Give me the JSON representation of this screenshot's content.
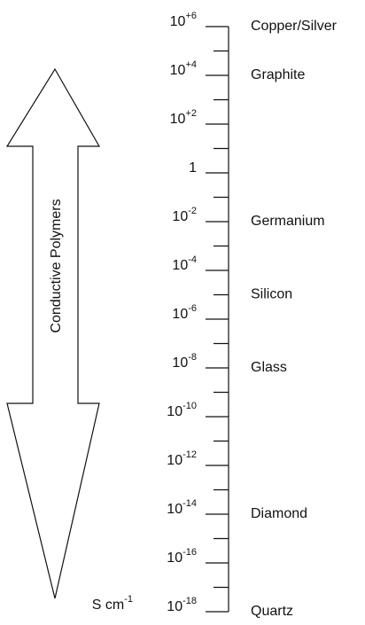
{
  "unit": {
    "base": "S cm",
    "exp": "-1"
  },
  "arrow_label": "Conductive Polymers",
  "scale": {
    "ticks": [
      {
        "value": 6,
        "base": "10",
        "exp": "+6"
      },
      {
        "value": 4,
        "base": "10",
        "exp": "+4"
      },
      {
        "value": 2,
        "base": "10",
        "exp": "+2"
      },
      {
        "value": 0,
        "base": "1"
      },
      {
        "value": -2,
        "base": "10",
        "exp": "-2"
      },
      {
        "value": -4,
        "base": "10",
        "exp": "-4"
      },
      {
        "value": -6,
        "base": "10",
        "exp": "-6"
      },
      {
        "value": -8,
        "base": "10",
        "exp": "-8"
      },
      {
        "value": -10,
        "base": "10",
        "exp": "-10"
      },
      {
        "value": -12,
        "base": "10",
        "exp": "-12"
      },
      {
        "value": -14,
        "base": "10",
        "exp": "-14"
      },
      {
        "value": -16,
        "base": "10",
        "exp": "-16"
      },
      {
        "value": -18,
        "base": "10",
        "exp": "-18"
      }
    ]
  },
  "materials": [
    {
      "name": "Copper/Silver",
      "value": 6
    },
    {
      "name": "Graphite",
      "value": 4
    },
    {
      "name": "Germanium",
      "value": -2
    },
    {
      "name": "Silicon",
      "value": -5
    },
    {
      "name": "Glass",
      "value": -8
    },
    {
      "name": "Diamond",
      "value": -14
    },
    {
      "name": "Quartz",
      "value": -18
    }
  ]
}
